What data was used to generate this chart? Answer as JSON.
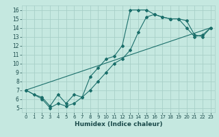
{
  "xlabel": "Humidex (Indice chaleur)",
  "bg_color": "#c5e8e0",
  "grid_color": "#a8cfc8",
  "line_color": "#1a6e6a",
  "xlim": [
    -0.5,
    23.5
  ],
  "ylim": [
    4.5,
    16.5
  ],
  "xtick_labels": [
    "0",
    "1",
    "2",
    "3",
    "4",
    "5",
    "6",
    "7",
    "8",
    "9",
    "10",
    "11",
    "12",
    "13",
    "14",
    "15",
    "16",
    "17",
    "18",
    "19",
    "20",
    "21",
    "22",
    "23"
  ],
  "ytick_labels": [
    "5",
    "6",
    "7",
    "8",
    "9",
    "10",
    "11",
    "12",
    "13",
    "14",
    "15",
    "16"
  ],
  "ytick_vals": [
    5,
    6,
    7,
    8,
    9,
    10,
    11,
    12,
    13,
    14,
    15,
    16
  ],
  "line1_x": [
    0,
    1,
    2,
    3,
    4,
    5,
    6,
    7,
    8,
    9,
    10,
    11,
    12,
    13,
    14,
    15,
    16,
    17,
    18,
    19,
    20,
    21,
    22,
    23
  ],
  "line1_y": [
    7.0,
    6.5,
    6.2,
    5.2,
    6.5,
    5.5,
    6.5,
    6.2,
    8.5,
    9.5,
    10.5,
    10.8,
    12.0,
    16.0,
    16.0,
    16.0,
    15.5,
    15.2,
    15.0,
    15.0,
    14.8,
    13.2,
    13.0,
    14.0
  ],
  "line2_x": [
    0,
    2,
    3,
    4,
    5,
    6,
    7,
    8,
    9,
    10,
    11,
    12,
    13,
    14,
    15,
    16,
    17,
    18,
    19,
    20,
    21,
    22,
    23
  ],
  "line2_y": [
    7.0,
    6.0,
    5.0,
    5.5,
    5.2,
    5.5,
    6.2,
    7.0,
    8.0,
    9.0,
    10.0,
    10.5,
    11.5,
    13.5,
    15.2,
    15.5,
    15.2,
    15.0,
    15.0,
    14.0,
    13.0,
    13.2,
    14.0
  ],
  "line3_x": [
    0,
    23
  ],
  "line3_y": [
    7.0,
    14.0
  ]
}
